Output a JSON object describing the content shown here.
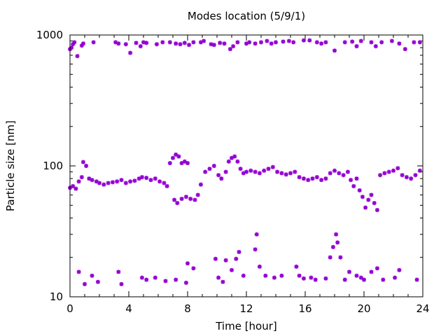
{
  "chart_data": {
    "type": "scatter",
    "title": "Modes location (5/9/1)",
    "xlabel": "Time [hour]",
    "ylabel": "Particle size [nm]",
    "xlim": [
      0,
      24
    ],
    "ylim": [
      10,
      1000
    ],
    "yscale": "log",
    "grid": false,
    "legend": "none",
    "x_ticks": [
      0,
      4,
      8,
      12,
      16,
      20,
      24
    ],
    "x_tick_labels": [
      "0",
      "4",
      "8",
      "12",
      "16",
      "20",
      "24"
    ],
    "y_ticks": [
      10,
      100,
      1000
    ],
    "y_tick_labels": [
      "10",
      "100",
      "1000"
    ],
    "marker_color": "#9400d3",
    "series": [
      {
        "values_note": "",
        "points": [
          [
            0.0,
            780
          ],
          [
            0.1,
            800
          ],
          [
            0.2,
            850
          ],
          [
            0.3,
            880
          ],
          [
            0.5,
            690
          ],
          [
            0.8,
            830
          ],
          [
            0.9,
            860
          ],
          [
            1.6,
            880
          ],
          [
            3.1,
            880
          ],
          [
            3.3,
            860
          ],
          [
            3.8,
            850
          ],
          [
            4.1,
            730
          ],
          [
            4.5,
            870
          ],
          [
            4.8,
            820
          ],
          [
            5.0,
            880
          ],
          [
            5.2,
            870
          ],
          [
            5.9,
            850
          ],
          [
            6.3,
            880
          ],
          [
            6.8,
            880
          ],
          [
            7.2,
            860
          ],
          [
            7.5,
            850
          ],
          [
            7.8,
            870
          ],
          [
            8.1,
            840
          ],
          [
            8.4,
            880
          ],
          [
            8.9,
            880
          ],
          [
            9.1,
            900
          ],
          [
            9.6,
            850
          ],
          [
            9.8,
            840
          ],
          [
            10.2,
            870
          ],
          [
            10.5,
            860
          ],
          [
            10.9,
            780
          ],
          [
            11.1,
            820
          ],
          [
            11.4,
            880
          ],
          [
            12.0,
            860
          ],
          [
            12.2,
            880
          ],
          [
            12.6,
            860
          ],
          [
            13.0,
            880
          ],
          [
            13.4,
            900
          ],
          [
            13.7,
            860
          ],
          [
            14.0,
            880
          ],
          [
            14.5,
            890
          ],
          [
            14.9,
            900
          ],
          [
            15.2,
            880
          ],
          [
            15.9,
            910
          ],
          [
            16.3,
            910
          ],
          [
            16.8,
            880
          ],
          [
            17.1,
            860
          ],
          [
            17.4,
            880
          ],
          [
            18.0,
            760
          ],
          [
            18.7,
            880
          ],
          [
            19.2,
            890
          ],
          [
            19.5,
            820
          ],
          [
            19.8,
            900
          ],
          [
            20.5,
            880
          ],
          [
            20.8,
            820
          ],
          [
            21.2,
            880
          ],
          [
            21.9,
            900
          ],
          [
            22.4,
            860
          ],
          [
            22.8,
            780
          ],
          [
            23.4,
            880
          ],
          [
            23.8,
            880
          ]
        ]
      },
      {
        "points": [
          [
            0.0,
            68
          ],
          [
            0.2,
            70
          ],
          [
            0.4,
            67
          ],
          [
            0.6,
            76
          ],
          [
            0.8,
            82
          ],
          [
            0.9,
            107
          ],
          [
            1.1,
            100
          ],
          [
            1.3,
            80
          ],
          [
            1.5,
            78
          ],
          [
            1.8,
            76
          ],
          [
            2.0,
            74
          ],
          [
            2.3,
            72
          ],
          [
            2.6,
            74
          ],
          [
            2.9,
            75
          ],
          [
            3.2,
            76
          ],
          [
            3.5,
            78
          ],
          [
            3.8,
            74
          ],
          [
            4.1,
            76
          ],
          [
            4.4,
            77
          ],
          [
            4.7,
            80
          ],
          [
            4.9,
            82
          ],
          [
            5.2,
            81
          ],
          [
            5.5,
            78
          ],
          [
            5.8,
            80
          ],
          [
            6.1,
            76
          ],
          [
            6.4,
            74
          ],
          [
            6.6,
            70
          ],
          [
            6.8,
            105
          ],
          [
            7.0,
            115
          ],
          [
            7.2,
            122
          ],
          [
            7.4,
            118
          ],
          [
            7.6,
            105
          ],
          [
            7.8,
            108
          ],
          [
            8.0,
            105
          ],
          [
            7.1,
            55
          ],
          [
            7.3,
            52
          ],
          [
            7.6,
            56
          ],
          [
            7.9,
            58
          ],
          [
            8.2,
            56
          ],
          [
            8.5,
            55
          ],
          [
            8.7,
            60
          ],
          [
            8.9,
            72
          ],
          [
            9.2,
            90
          ],
          [
            9.5,
            95
          ],
          [
            9.8,
            100
          ],
          [
            10.1,
            85
          ],
          [
            10.3,
            80
          ],
          [
            10.6,
            90
          ],
          [
            10.8,
            108
          ],
          [
            11.0,
            115
          ],
          [
            11.2,
            118
          ],
          [
            11.4,
            108
          ],
          [
            11.6,
            95
          ],
          [
            11.8,
            88
          ],
          [
            12.0,
            90
          ],
          [
            12.3,
            92
          ],
          [
            12.6,
            90
          ],
          [
            12.9,
            88
          ],
          [
            13.2,
            92
          ],
          [
            13.5,
            95
          ],
          [
            13.8,
            98
          ],
          [
            14.1,
            90
          ],
          [
            14.4,
            88
          ],
          [
            14.7,
            86
          ],
          [
            15.0,
            88
          ],
          [
            15.3,
            90
          ],
          [
            15.6,
            82
          ],
          [
            15.9,
            80
          ],
          [
            16.2,
            78
          ],
          [
            16.5,
            80
          ],
          [
            16.8,
            82
          ],
          [
            17.1,
            78
          ],
          [
            17.4,
            80
          ],
          [
            17.7,
            88
          ],
          [
            18.0,
            92
          ],
          [
            18.3,
            88
          ],
          [
            18.6,
            85
          ],
          [
            18.9,
            90
          ],
          [
            19.1,
            78
          ],
          [
            19.3,
            70
          ],
          [
            19.5,
            80
          ],
          [
            19.7,
            65
          ],
          [
            19.9,
            58
          ],
          [
            20.1,
            48
          ],
          [
            20.3,
            55
          ],
          [
            20.5,
            60
          ],
          [
            20.7,
            52
          ],
          [
            20.9,
            46
          ],
          [
            21.1,
            85
          ],
          [
            21.4,
            88
          ],
          [
            21.7,
            90
          ],
          [
            22.0,
            92
          ],
          [
            22.3,
            96
          ],
          [
            22.6,
            85
          ],
          [
            22.9,
            82
          ],
          [
            23.2,
            80
          ],
          [
            23.5,
            85
          ],
          [
            23.8,
            92
          ]
        ]
      },
      {
        "points": [
          [
            0.6,
            15.5
          ],
          [
            1.0,
            12.5
          ],
          [
            1.5,
            14.5
          ],
          [
            1.9,
            13
          ],
          [
            3.3,
            15.5
          ],
          [
            3.5,
            12.5
          ],
          [
            4.9,
            14
          ],
          [
            5.2,
            13.5
          ],
          [
            5.8,
            14
          ],
          [
            6.5,
            13.2
          ],
          [
            7.2,
            13.5
          ],
          [
            7.9,
            12.8
          ],
          [
            8.0,
            18
          ],
          [
            8.4,
            16.5
          ],
          [
            9.9,
            19.5
          ],
          [
            10.1,
            14
          ],
          [
            10.4,
            13
          ],
          [
            10.6,
            19
          ],
          [
            11.0,
            16
          ],
          [
            11.3,
            19.5
          ],
          [
            11.5,
            22
          ],
          [
            11.8,
            14.5
          ],
          [
            12.6,
            23
          ],
          [
            12.7,
            30
          ],
          [
            12.9,
            17
          ],
          [
            13.3,
            14.5
          ],
          [
            13.9,
            14
          ],
          [
            14.4,
            14.5
          ],
          [
            15.4,
            17
          ],
          [
            15.6,
            14.5
          ],
          [
            15.9,
            13.8
          ],
          [
            16.4,
            14
          ],
          [
            16.7,
            13.5
          ],
          [
            17.4,
            13.8
          ],
          [
            17.7,
            20
          ],
          [
            17.9,
            24
          ],
          [
            18.1,
            30
          ],
          [
            18.2,
            26
          ],
          [
            18.4,
            20
          ],
          [
            18.7,
            13.5
          ],
          [
            19.0,
            15.5
          ],
          [
            19.5,
            14.5
          ],
          [
            19.8,
            14
          ],
          [
            20.0,
            13.5
          ],
          [
            20.5,
            15.5
          ],
          [
            20.9,
            16.5
          ],
          [
            21.3,
            13.5
          ],
          [
            22.1,
            14
          ],
          [
            22.4,
            16
          ],
          [
            23.6,
            13.5
          ]
        ]
      }
    ]
  }
}
